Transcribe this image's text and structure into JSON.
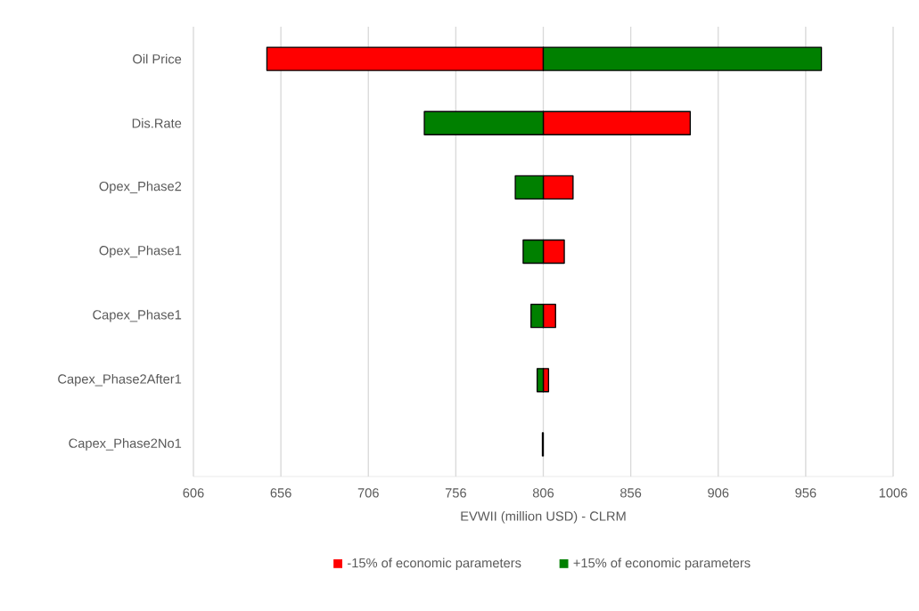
{
  "chart_data": {
    "type": "bar",
    "orientation": "horizontal",
    "xlabel": "EVWII (million USD) - CLRM",
    "categories": [
      "Oil Price",
      "Dis.Rate",
      "Opex_Phase2",
      "Opex_Phase1",
      "Capex_Phase1",
      "Capex_Phase2After1",
      "Capex_Phase2No1"
    ],
    "series": [
      {
        "name": "-15% of economic parameters",
        "color": "#ff0000",
        "base": [
          806,
          806,
          806,
          806,
          806,
          806,
          null
        ],
        "values": [
          -158,
          84,
          17,
          12,
          7,
          3,
          null
        ]
      },
      {
        "name": "+15% of economic parameters",
        "color": "#008000",
        "base": [
          806,
          806,
          806,
          806,
          806,
          806,
          806
        ],
        "values": [
          159,
          -68,
          -16,
          -11.5,
          -7,
          -3.5,
          -0.5
        ]
      }
    ],
    "xlim": [
      606,
      1006
    ],
    "xticks": [
      606,
      656,
      706,
      756,
      806,
      856,
      906,
      956,
      1006
    ],
    "grid": "x",
    "legend": "bottom"
  }
}
